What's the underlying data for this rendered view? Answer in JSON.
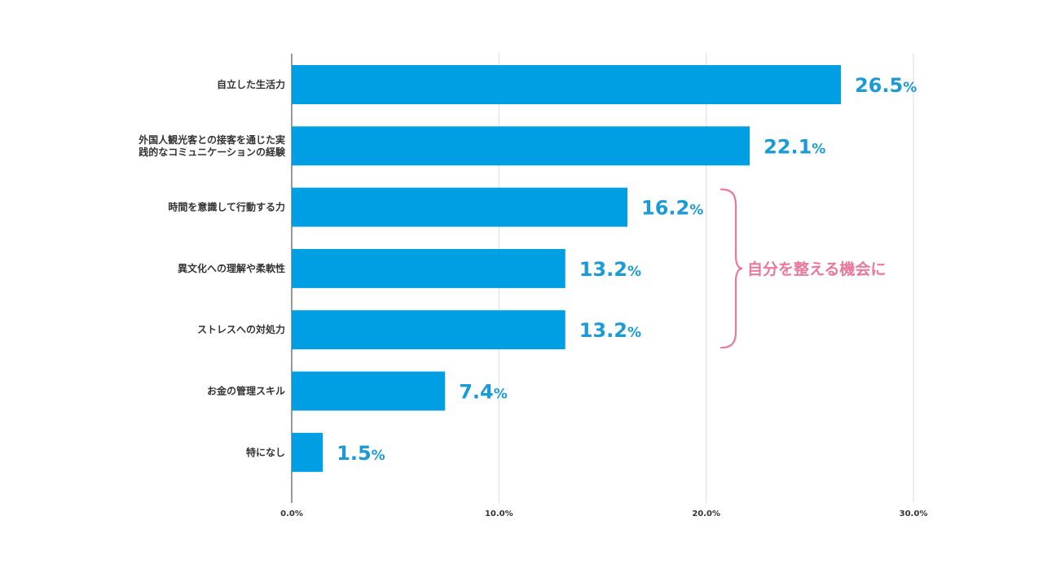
{
  "chart_data": {
    "type": "bar",
    "orientation": "horizontal",
    "categories": [
      [
        "自立した生活力"
      ],
      [
        "外国人観光客との接客を通じた実",
        "践的なコミュニケーションの経験"
      ],
      [
        "時間を意識して行動する力"
      ],
      [
        "異文化への理解や柔軟性"
      ],
      [
        "ストレスへの対処力"
      ],
      [
        "お金の管理スキル"
      ],
      [
        "特になし"
      ]
    ],
    "values": [
      26.5,
      22.1,
      16.2,
      13.2,
      13.2,
      7.4,
      1.5
    ],
    "value_labels": [
      "26.5",
      "22.1",
      "16.2",
      "13.2",
      "13.2",
      "7.4",
      "1.5"
    ],
    "value_unit": "%",
    "xlim": [
      0,
      30
    ],
    "x_ticks": [
      0,
      10,
      20,
      30
    ],
    "x_tick_labels": [
      "0.0%",
      "10.0%",
      "20.0%",
      "30.0%"
    ],
    "grid": true,
    "annotation": {
      "text": "自分を整える機会に",
      "spans_categories": [
        2,
        4
      ]
    }
  },
  "colors": {
    "bar": "#009fe3",
    "value_label": "#1a9bd7",
    "annotation": "#e8799c",
    "grid": "#dddddd",
    "axis": "#555555"
  }
}
